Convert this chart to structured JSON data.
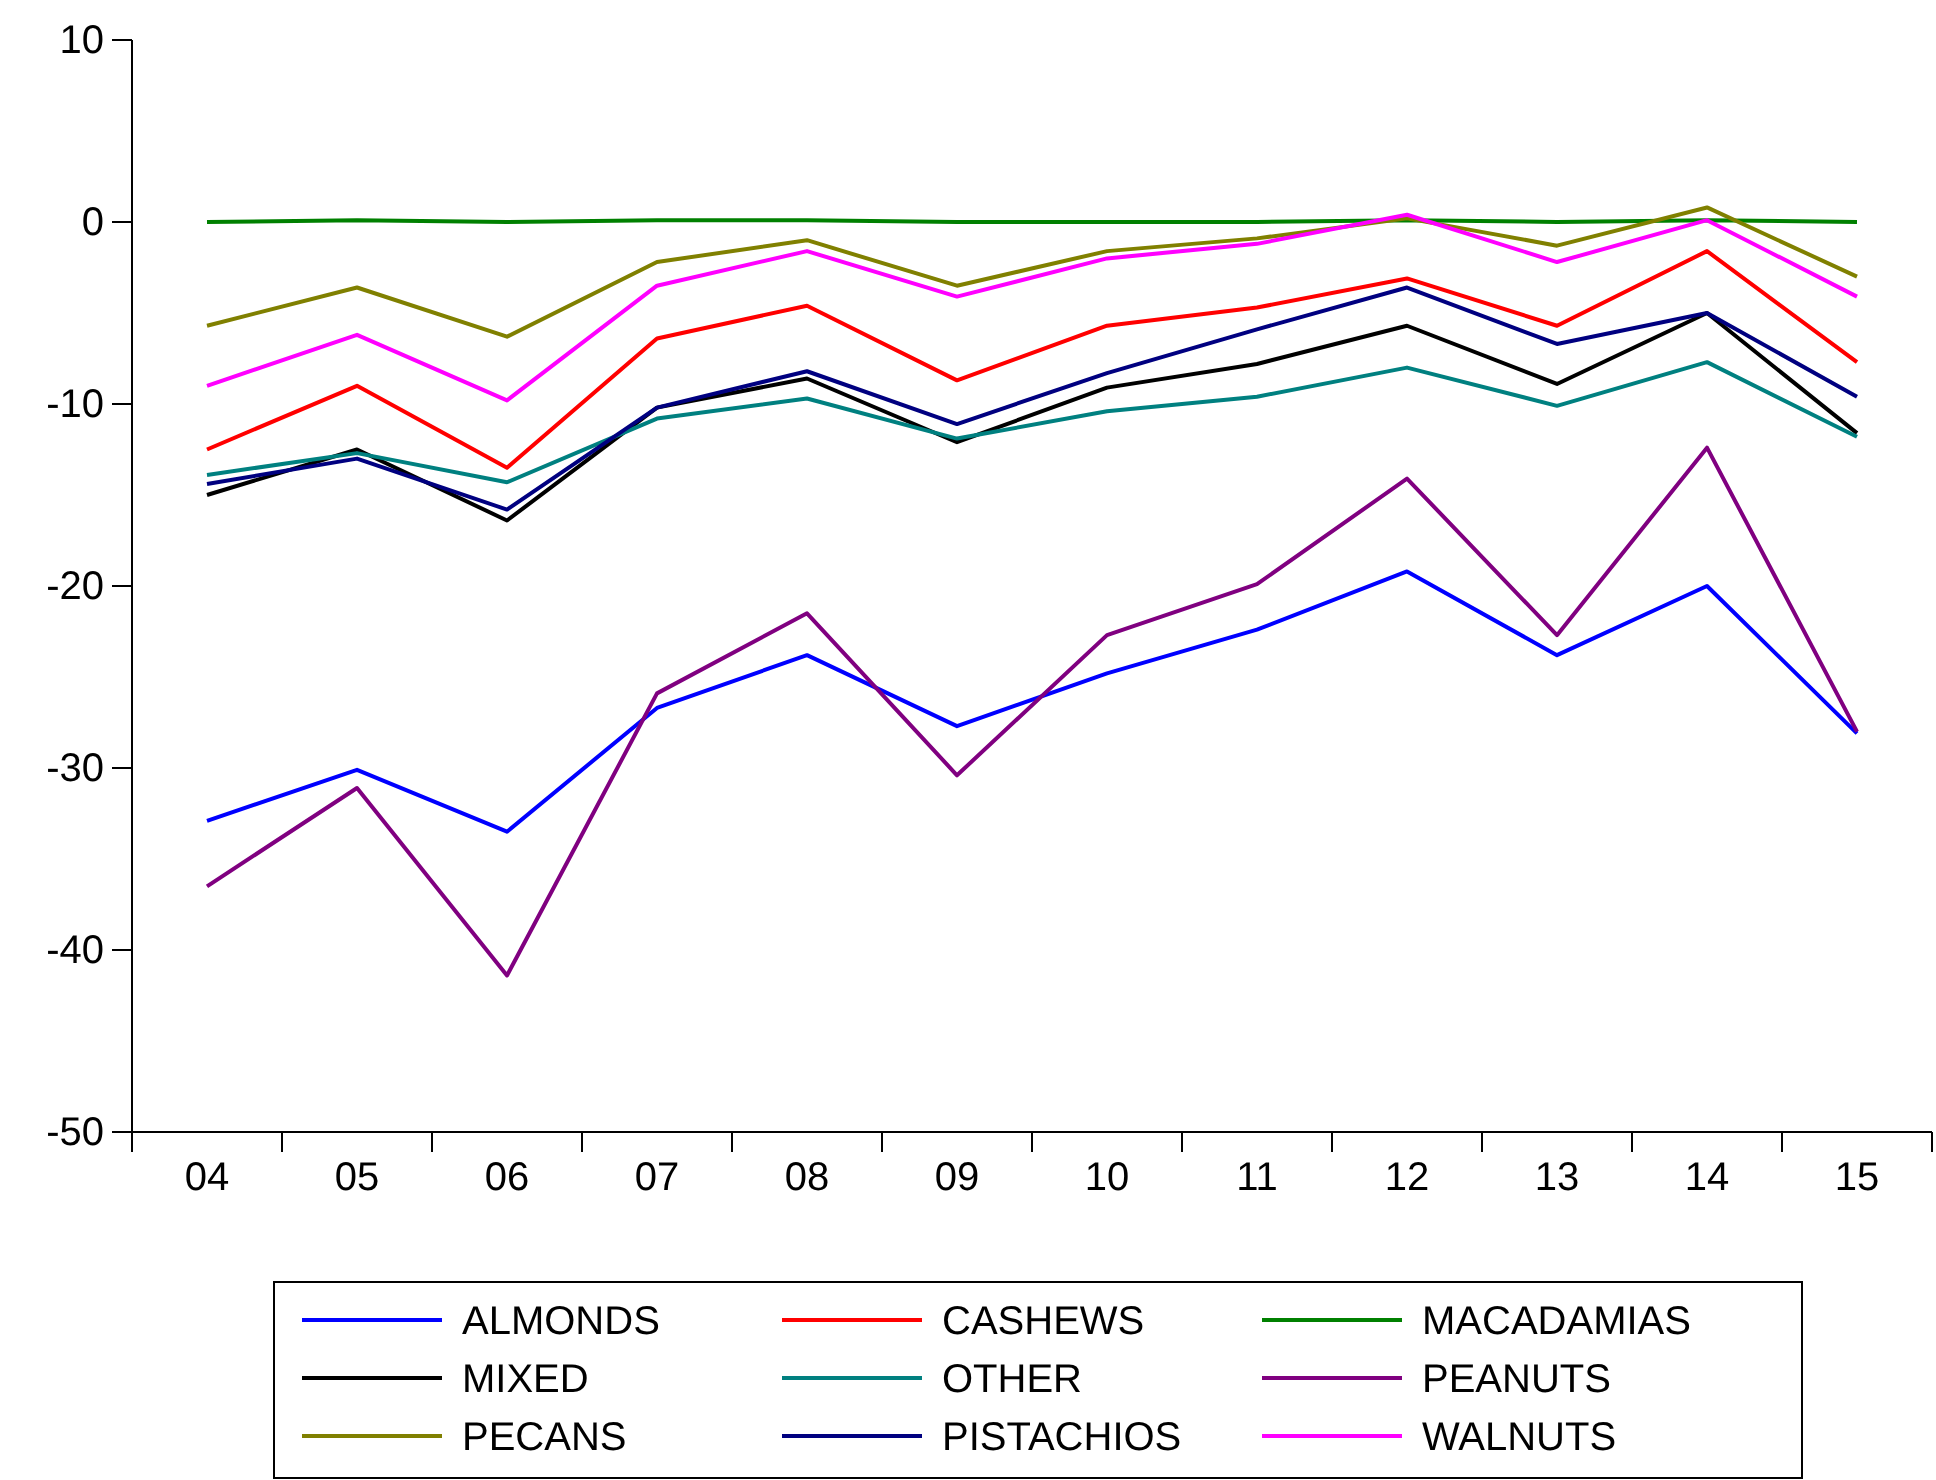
{
  "chart_data": {
    "type": "line",
    "categories": [
      "04",
      "05",
      "06",
      "07",
      "08",
      "09",
      "10",
      "11",
      "12",
      "13",
      "14",
      "15"
    ],
    "ylim": [
      -50,
      10
    ],
    "yticks": [
      -50,
      -40,
      -30,
      -20,
      -10,
      0,
      10
    ],
    "grid": false,
    "legend": "bottom",
    "line_style": "solid",
    "marker": "none",
    "series": [
      {
        "name": "ALMONDS",
        "color": "#0000ff",
        "values": [
          -32.9,
          -30.1,
          -33.5,
          -26.7,
          -23.8,
          -27.7,
          -24.8,
          -22.4,
          -19.2,
          -23.8,
          -20,
          -28.1
        ]
      },
      {
        "name": "CASHEWS",
        "color": "#ff0000",
        "values": [
          -12.5,
          -9.0,
          -13.5,
          -6.4,
          -4.6,
          -8.7,
          -5.7,
          -4.7,
          -3.1,
          -5.7,
          -1.6,
          -7.7
        ]
      },
      {
        "name": "MACADAMIAS",
        "color": "#008000",
        "values": [
          0,
          0.1,
          0,
          0.1,
          0.1,
          0,
          0,
          0,
          0.1,
          0,
          0.1,
          0
        ]
      },
      {
        "name": "MIXED",
        "color": "#000000",
        "values": [
          -15.0,
          -12.5,
          -16.4,
          -10.2,
          -8.6,
          -12.1,
          -9.1,
          -7.8,
          -5.7,
          -8.9,
          -5.0,
          -11.6
        ]
      },
      {
        "name": "OTHER",
        "color": "#008080",
        "values": [
          -13.9,
          -12.7,
          -14.3,
          -10.8,
          -9.7,
          -11.9,
          -10.4,
          -9.6,
          -8.0,
          -10.1,
          -7.7,
          -11.8
        ]
      },
      {
        "name": "PEANUTS",
        "color": "#800080",
        "values": [
          -36.5,
          -31.1,
          -41.4,
          -25.9,
          -21.5,
          -30.4,
          -22.7,
          -19.9,
          -14.1,
          -22.7,
          -12.4,
          -28.0
        ]
      },
      {
        "name": "PECANS",
        "color": "#808000",
        "values": [
          -5.7,
          -3.6,
          -6.3,
          -2.2,
          -1.0,
          -3.5,
          -1.6,
          -0.9,
          0.2,
          -1.3,
          0.8,
          -3.0
        ]
      },
      {
        "name": "PISTACHIOS",
        "color": "#000080",
        "values": [
          -14.4,
          -13.0,
          -15.8,
          -10.2,
          -8.2,
          -11.1,
          -8.3,
          -5.9,
          -3.6,
          -6.7,
          -5.0,
          -9.6
        ]
      },
      {
        "name": "WALNUTS",
        "color": "#ff00ff",
        "values": [
          -9.0,
          -6.2,
          -9.8,
          -3.5,
          -1.6,
          -4.1,
          -2.0,
          -1.2,
          0.4,
          -2.2,
          0.1,
          -4.1
        ]
      }
    ]
  }
}
